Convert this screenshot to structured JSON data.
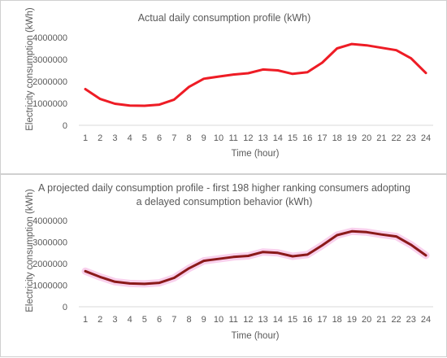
{
  "chart_data": [
    {
      "type": "line",
      "title": "Actual daily consumption profile (kWh)",
      "xlabel": "Time (hour)",
      "ylabel": "Electricity consumption (kWh)",
      "x": [
        "1",
        "2",
        "3",
        "4",
        "5",
        "6",
        "7",
        "8",
        "9",
        "10",
        "11",
        "12",
        "13",
        "14",
        "15",
        "16",
        "17",
        "18",
        "19",
        "20",
        "21",
        "22",
        "23",
        "24"
      ],
      "yticks": [
        "0",
        "1000000",
        "2000000",
        "3000000",
        "4000000"
      ],
      "ylim": [
        0,
        4000000
      ],
      "grid": false,
      "series": [
        {
          "color": "#ee1c25",
          "values": [
            1650000,
            1200000,
            980000,
            900000,
            890000,
            940000,
            1170000,
            1750000,
            2120000,
            2220000,
            2310000,
            2370000,
            2540000,
            2500000,
            2340000,
            2420000,
            2850000,
            3500000,
            3700000,
            3640000,
            3530000,
            3420000,
            3050000,
            2380000
          ]
        }
      ]
    },
    {
      "type": "line",
      "title_lines": [
        "A projected daily consumption profile - first 198 higher ranking consumers adopting",
        "a delayed consumption behavior (kWh)"
      ],
      "xlabel": "Time (hour)",
      "ylabel": "Electricity consumption (kWh)",
      "x": [
        "1",
        "2",
        "3",
        "4",
        "5",
        "6",
        "7",
        "8",
        "9",
        "10",
        "11",
        "12",
        "13",
        "14",
        "15",
        "16",
        "17",
        "18",
        "19",
        "20",
        "21",
        "22",
        "23",
        "24"
      ],
      "yticks": [
        "0",
        "1000000",
        "2000000",
        "3000000",
        "4000000"
      ],
      "ylim": [
        0,
        4000000
      ],
      "grid": false,
      "series": [
        {
          "color": "#8b1a1a",
          "glow_color": "#f7c6e8",
          "values": [
            1650000,
            1380000,
            1160000,
            1080000,
            1060000,
            1110000,
            1340000,
            1780000,
            2130000,
            2220000,
            2310000,
            2360000,
            2540000,
            2500000,
            2340000,
            2420000,
            2850000,
            3320000,
            3500000,
            3460000,
            3350000,
            3260000,
            2870000,
            2380000
          ]
        }
      ]
    }
  ]
}
